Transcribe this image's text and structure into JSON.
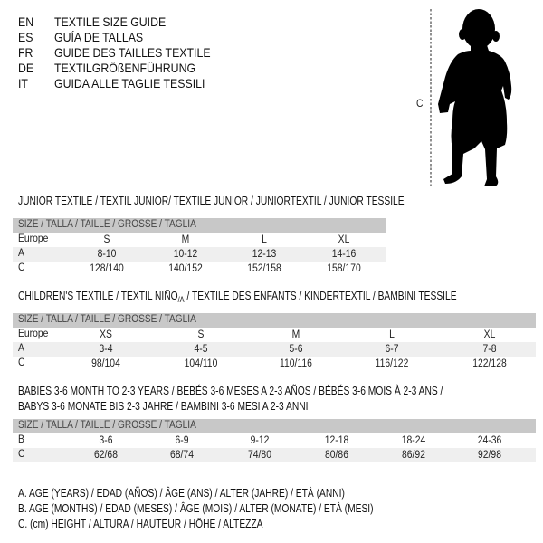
{
  "languages": [
    {
      "code": "EN",
      "title": "TEXTILE SIZE GUIDE"
    },
    {
      "code": "ES",
      "title": "GUÍA DE TALLAS"
    },
    {
      "code": "FR",
      "title": "GUIDE DES TAILLES TEXTILE"
    },
    {
      "code": "DE",
      "title": "TEXTILGRÖßENFÜHRUNG"
    },
    {
      "code": "IT",
      "title": "GUIDA ALLE TAGLIE TESSILI"
    }
  ],
  "figure": {
    "measure_label": "C",
    "icon": "baby-silhouette-icon"
  },
  "size_header": "SIZE / TALLA / TAILLE / GRÖSSE / TAGLIA",
  "junior": {
    "title": "JUNIOR TEXTILE / TEXTIL JUNIOR/ TEXTILE JUNIOR / JUNIORTEXTIL / JUNIOR TESSILE",
    "rows": [
      {
        "label": "Europe",
        "values": [
          "S",
          "M",
          "L",
          "XL"
        ]
      },
      {
        "label": "A",
        "values": [
          "8-10",
          "10-12",
          "12-13",
          "14-16"
        ]
      },
      {
        "label": "C",
        "values": [
          "128/140",
          "140/152",
          "152/158",
          "158/170"
        ]
      }
    ]
  },
  "children": {
    "title": "CHILDREN'S TEXTILE / TEXTIL NIÑO",
    "title_sub": "/A",
    "title_rest": " / TEXTILE DES ENFANTS / KINDERTEXTIL / BAMBINI TESSILE",
    "rows": [
      {
        "label": "Europe",
        "values": [
          "XS",
          "S",
          "M",
          "L",
          "XL"
        ]
      },
      {
        "label": "A",
        "values": [
          "3-4",
          "4-5",
          "5-6",
          "6-7",
          "7-8"
        ]
      },
      {
        "label": "C",
        "values": [
          "98/104",
          "104/110",
          "110/116",
          "116/122",
          "122/128"
        ]
      }
    ]
  },
  "babies": {
    "title_line1": "BABIES 3-6 MONTH TO 2-3 YEARS / BEBÉS 3-6 MESES A 2-3 AÑOS / BÉBÉS 3-6 MOIS À 2-3 ANS /",
    "title_line2": "BABYS 3-6 MONATE BIS 2-3 JAHRE / BAMBINI 3-6 MESI A 2-3 ANNI",
    "rows": [
      {
        "label": "B",
        "values": [
          "3-6",
          "6-9",
          "9-12",
          "12-18",
          "18-24",
          "24-36"
        ]
      },
      {
        "label": "C",
        "values": [
          "62/68",
          "68/74",
          "74/80",
          "80/86",
          "86/92",
          "92/98"
        ]
      }
    ]
  },
  "legend": [
    "A. AGE (YEARS) / EDAD (AÑOS) / ÂGE (ANS) / ALTER (JAHRE) / ETÀ (ANNI)",
    "B. AGE (MONTHS) / EDAD (MESES) / ÂGE (MOIS) / ALTER (MONATE) / ETÀ (MESI)",
    "C. (cm) HEIGHT / ALTURA / HAUTEUR / HÖHE / ALTEZZA"
  ]
}
